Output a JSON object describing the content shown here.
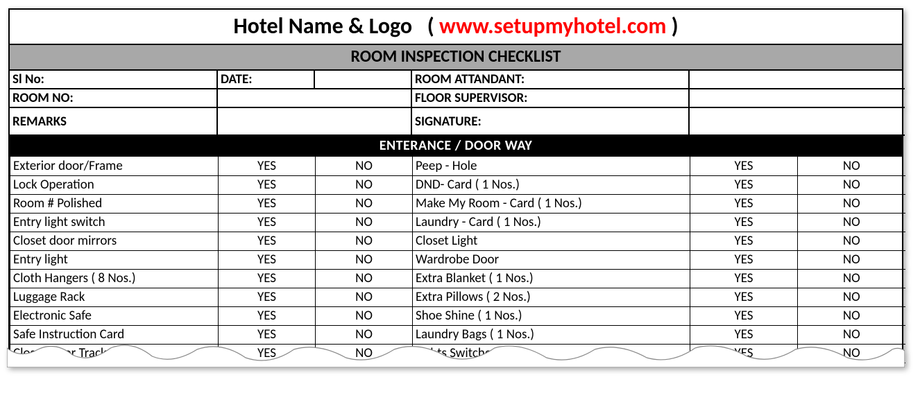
{
  "colors": {
    "border": "#000000",
    "background": "#ffffff",
    "subtitle_bg": "#a8a8a8",
    "section_bg": "#000000",
    "section_fg": "#ffffff",
    "url": "#ff0000"
  },
  "header": {
    "title_main": "Hotel Name & Logo",
    "paren_open": "(",
    "url": "www.setupmyhotel.com",
    "paren_close": ")",
    "subtitle": "ROOM INSPECTION CHECKLIST"
  },
  "info": {
    "sl_no_label": "Sl No:",
    "date_label": "DATE:",
    "room_attendant_label": "ROOM ATTANDANT:",
    "room_no_label": "ROOM NO:",
    "floor_supervisor_label": "FLOOR SUPERVISOR:",
    "remarks_label": "REMARKS",
    "signature_label": "SIGNATURE:"
  },
  "section_title": "ENTERANCE / DOOR WAY",
  "yes": "YES",
  "no": "NO",
  "checklist": {
    "left": [
      "Exterior door/Frame",
      "Lock Operation",
      "Room # Polished",
      "Entry light switch",
      "Closet door mirrors",
      "Entry light",
      "Cloth Hangers ( 8 Nos.)",
      "Luggage Rack",
      "Electronic Safe",
      "Safe Instruction Card",
      "Closet Door Tracks"
    ],
    "right": [
      "Peep - Hole",
      "DND- Card  ( 1 Nos.)",
      "Make My Room - Card  ( 1 Nos.)",
      "Laundry - Card ( 1 Nos.)",
      "Closet Light",
      "Wardrobe Door",
      "Extra Blanket  ( 1 Nos.)",
      "Extra Pillows  ( 2 Nos.)",
      "Shoe Shine  ( 1 Nos.)",
      "Laundry Bags  ( 1 Nos.)",
      "Lights Switches"
    ]
  }
}
